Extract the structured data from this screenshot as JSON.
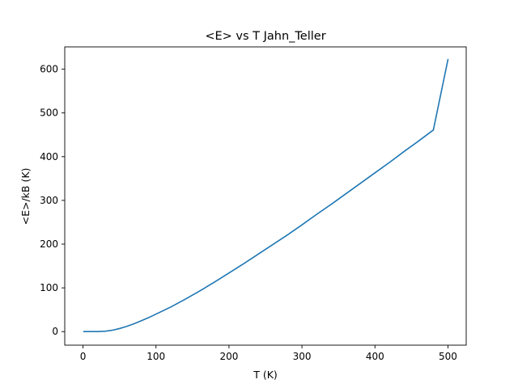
{
  "chart_data": {
    "type": "line",
    "title": "<E> vs T Jahn_Teller",
    "xlabel": "T (K)",
    "ylabel": "<E>/kB (K)",
    "xlim": [
      -25,
      525
    ],
    "ylim": [
      -31,
      651
    ],
    "xticks": [
      0,
      100,
      200,
      300,
      400,
      500
    ],
    "yticks": [
      0,
      100,
      200,
      300,
      400,
      500,
      600
    ],
    "grid": false,
    "legend": "none",
    "series": [
      {
        "color": "#1f77b4",
        "x": [
          1,
          10,
          20,
          30,
          40,
          50,
          60,
          70,
          80,
          90,
          100,
          120,
          140,
          160,
          180,
          200,
          220,
          240,
          260,
          280,
          300,
          320,
          340,
          360,
          380,
          400,
          420,
          440,
          460,
          480,
          500
        ],
        "y": [
          0,
          0,
          0.1,
          0.8,
          3,
          7,
          12,
          18,
          25,
          32,
          40,
          56,
          74,
          93,
          113,
          134,
          155,
          177,
          199,
          221,
          244,
          268,
          291,
          315,
          339,
          363,
          387,
          412,
          436,
          461,
          622
        ]
      }
    ]
  }
}
